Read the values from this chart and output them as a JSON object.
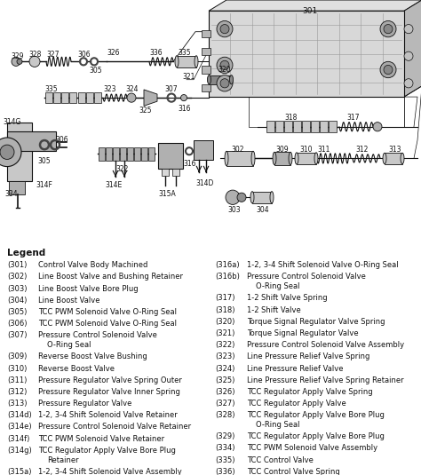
{
  "background_color": "#f0eeea",
  "legend_bg": "#ffffff",
  "col": "#1a1a1a",
  "legend_title": "Legend",
  "left_column": [
    [
      "(301)",
      "Control Valve Body Machined"
    ],
    [
      "(302)",
      "Line Boost Valve and Bushing Retainer"
    ],
    [
      "(303)",
      "Line Boost Valve Bore Plug"
    ],
    [
      "(304)",
      "Line Boost Valve"
    ],
    [
      "(305)",
      "TCC PWM Solenoid Valve O-Ring Seal"
    ],
    [
      "(306)",
      "TCC PWM Solenoid Valve O-Ring Seal"
    ],
    [
      "(307)",
      "Pressure Control Solenoid Valve\nO-Ring Seal"
    ],
    [
      "(309)",
      "Reverse Boost Valve Bushing"
    ],
    [
      "(310)",
      "Reverse Boost Valve"
    ],
    [
      "(311)",
      "Pressure Regulator Valve Spring Outer"
    ],
    [
      "(312)",
      "Pressure Regulator Valve Inner Spring"
    ],
    [
      "(313)",
      "Pressure Regulator Valve"
    ],
    [
      "(314d)",
      "1-2, 3-4 Shift Solenoid Valve Retainer"
    ],
    [
      "(314e)",
      "Pressure Control Solenoid Valve Retainer"
    ],
    [
      "(314f)",
      "TCC PWM Solenoid Valve Retainer"
    ],
    [
      "(314g)",
      "TCC Regulator Apply Valve Bore Plug\nRetainer"
    ],
    [
      "(315a)",
      "1-2, 3-4 Shift Solenoid Valve Assembly"
    ]
  ],
  "right_column": [
    [
      "(316a)",
      "1-2, 3-4 Shift Solenoid Valve O-Ring Seal"
    ],
    [
      "(316b)",
      "Pressure Control Solenoid Valve\nO-Ring Seal"
    ],
    [
      "(317)",
      "1-2 Shift Valve Spring"
    ],
    [
      "(318)",
      "1-2 Shift Valve"
    ],
    [
      "(320)",
      "Torque Signal Regulator Valve Spring"
    ],
    [
      "(321)",
      "Torque Signal Regulator Valve"
    ],
    [
      "(322)",
      "Pressure Control Solenoid Valve Assembly"
    ],
    [
      "(323)",
      "Line Pressure Relief Valve Spring"
    ],
    [
      "(324)",
      "Line Pressure Relief Valve"
    ],
    [
      "(325)",
      "Line Pressure Relief Valve Spring Retainer"
    ],
    [
      "(326)",
      "TCC Regulator Apply Valve Spring"
    ],
    [
      "(327)",
      "TCC Regulator Apply Valve"
    ],
    [
      "(328)",
      "TCC Regulator Apply Valve Bore Plug\nO-Ring Seal"
    ],
    [
      "(329)",
      "TCC Regulator Apply Valve Bore Plug"
    ],
    [
      "(334)",
      "TCC PWM Solenoid Valve Assembly"
    ],
    [
      "(335)",
      "TCC Control Valve"
    ],
    [
      "(336)",
      "TCC Control Valve Spring"
    ]
  ]
}
